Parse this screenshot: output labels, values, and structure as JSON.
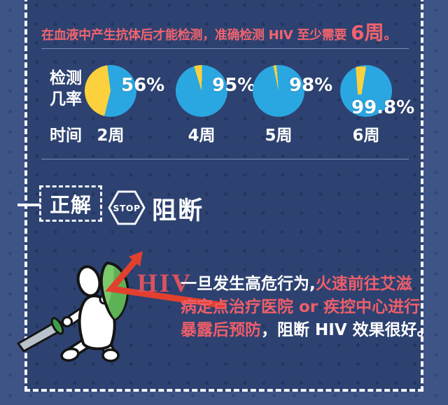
{
  "header": {
    "note_main": "在血液中产生抗体后才能检测，准确检测 HIV 至少需要 ",
    "note_em": "6周",
    "note_end": "。"
  },
  "chart_data": {
    "type": "pie",
    "row_label": "检测几率",
    "x_label": "时间",
    "categories": [
      "2周",
      "4周",
      "5周",
      "6周"
    ],
    "values": [
      56,
      95,
      98,
      99.8
    ],
    "value_labels": [
      "56%",
      "95%",
      "98%",
      "99.8%"
    ],
    "colors": {
      "detected": "#2aa7e0",
      "missed": "#fcd13d"
    }
  },
  "answer": {
    "box_label": "正解",
    "stop_label": "STOP",
    "action_label": "阻断"
  },
  "illustration": {
    "hiv_label": "HIV"
  },
  "advice": {
    "lines": [
      [
        {
          "text": "一旦发生高危行为,",
          "tone": "white"
        },
        {
          "text": "火速前往艾滋",
          "tone": "red"
        }
      ],
      [
        {
          "text": "病定点治疗医院 or 疾控中心进行",
          "tone": "red"
        }
      ],
      [
        {
          "text": "暴露后预防",
          "tone": "red"
        },
        {
          "text": "，阻断 HIV 效果很好。",
          "tone": "white"
        }
      ]
    ]
  }
}
